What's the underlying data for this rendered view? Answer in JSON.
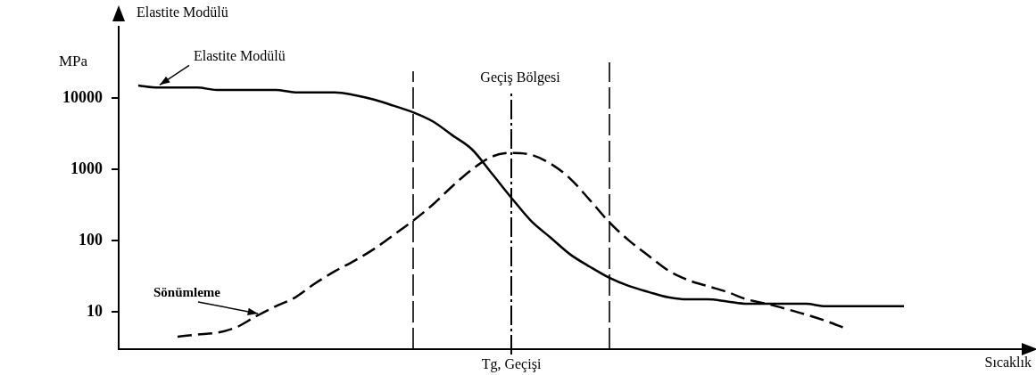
{
  "chart_data": {
    "type": "line",
    "xlabel": "Sıcaklık",
    "ylabel": "Elastite Modülü",
    "categories": [
      null,
      null,
      null,
      null,
      null,
      null,
      null,
      null,
      null,
      null,
      null,
      null,
      null,
      null,
      null,
      null,
      null,
      null,
      null,
      null,
      "Tg, Geçişi",
      null,
      null,
      null,
      null,
      null,
      null,
      null,
      null,
      null,
      null,
      null,
      null,
      null,
      null,
      null,
      null,
      null,
      null,
      null,
      null,
      null,
      null,
      null,
      null,
      null,
      null
    ],
    "series": [
      {
        "name": "Elastite Modülü",
        "color": "#000000",
        "line_style": "solid",
        "values": [
          null,
          15000,
          14000,
          14000,
          14000,
          13000,
          13000,
          13000,
          13000,
          12000,
          12000,
          12000,
          11000,
          9500,
          7800,
          6300,
          4700,
          3000,
          1900,
          880,
          400,
          190,
          110,
          64,
          43,
          30,
          23,
          19,
          16,
          15,
          15,
          14,
          13,
          13,
          13,
          13,
          12,
          12,
          12,
          12,
          12,
          null,
          null,
          null,
          null,
          null,
          null
        ]
      },
      {
        "name": "Sönümleme",
        "color": "#000000",
        "line_style": "dashed",
        "values": [
          null,
          null,
          null,
          4.5,
          4.8,
          5.1,
          6.1,
          8.7,
          12,
          16,
          25,
          37,
          52,
          76,
          120,
          190,
          320,
          580,
          1000,
          1500,
          1700,
          1600,
          1200,
          740,
          370,
          180,
          100,
          61,
          38,
          28,
          23,
          19,
          15,
          13,
          11,
          9.2,
          7.5,
          5.9,
          null,
          null,
          null,
          null,
          null,
          null,
          null,
          null,
          null
        ]
      }
    ],
    "log": "y",
    "ylim": [
      3,
      100000
    ],
    "yticks": [
      10,
      100,
      1000,
      10000
    ],
    "ref_lines": [
      {
        "axis": "x",
        "value": "Tg, Geçişi",
        "line_style": "dashed"
      }
    ],
    "annotations": [
      "MPa",
      "Geçiş Bölgesi"
    ],
    "grid": false,
    "legend": false,
    "marker": "none"
  }
}
